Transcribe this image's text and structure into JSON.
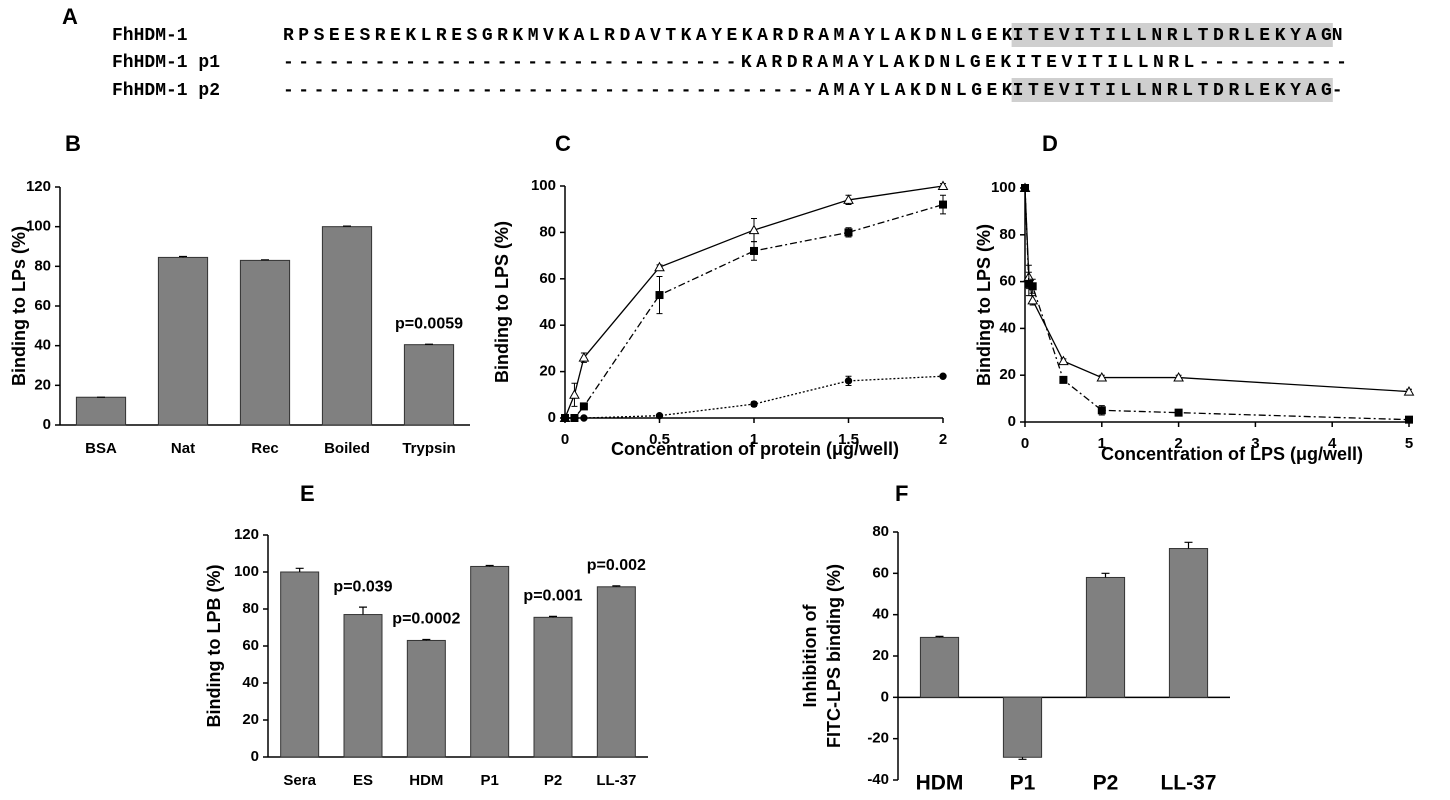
{
  "alignment": {
    "label": "A",
    "rows": [
      {
        "name": "FhHDM-1",
        "segments": [
          {
            "text": "RPSEESREKLRESGRKMVKALRDAVTKAYEKARDRAMAYLAKDNLGEK",
            "highlight": false
          },
          {
            "text": "ITEVITILLNRLTDRLEKYAG",
            "highlight": true
          },
          {
            "text": "N",
            "highlight": false
          }
        ]
      },
      {
        "name": "FhHDM-1 p1",
        "segments": [
          {
            "text": "------------------------------KARDRAMAYLAKDNLGEKITEVITILLNRL----------",
            "highlight": false
          }
        ]
      },
      {
        "name": "FhHDM-1 p2",
        "segments": [
          {
            "text": "-----------------------------------AMAYLAKDNLGEK",
            "highlight": false
          },
          {
            "text": "ITEVITILLNRLTDRLEKYAG",
            "highlight": true
          },
          {
            "text": "-",
            "highlight": false
          }
        ]
      }
    ]
  },
  "chart_data": [
    {
      "type": "bar",
      "label": "B",
      "ylabel": [
        "Binding to LPs (%)"
      ],
      "categories": [
        "BSA",
        "Nat",
        "Rec",
        "Boiled",
        "Trypsin"
      ],
      "values": [
        14,
        84.5,
        83,
        100,
        40.5
      ],
      "errors": [
        0,
        0.5,
        0.3,
        0.3,
        0.2
      ],
      "annotations": [
        null,
        null,
        null,
        null,
        "p=0.0059"
      ],
      "color": "#808080",
      "ylim": [
        0,
        120
      ],
      "yticks": [
        0,
        20,
        40,
        60,
        80,
        100,
        120
      ]
    },
    {
      "type": "line",
      "label": "C",
      "ylabel": [
        "Binding to LPS (%)"
      ],
      "xlabel": "Concentration of protein (μg/well)",
      "x": [
        0,
        0.05,
        0.1,
        0.5,
        1,
        1.5,
        2
      ],
      "series": [
        {
          "marker": "triangle",
          "dash": "solid",
          "color": "#000000",
          "values": [
            0,
            10,
            26,
            65,
            81,
            94,
            100
          ],
          "errors": [
            0,
            5,
            2,
            1,
            5,
            2,
            1
          ]
        },
        {
          "marker": "square",
          "dash": "dashdot",
          "color": "#000000",
          "values": [
            0,
            0,
            5,
            53,
            72,
            80,
            92
          ],
          "errors": [
            0,
            0,
            0,
            8,
            4,
            2,
            4
          ]
        },
        {
          "marker": "circle",
          "dash": "dotted",
          "color": "#000000",
          "values": [
            0,
            0,
            0,
            1,
            6,
            16,
            18
          ],
          "errors": [
            0,
            0,
            0,
            0,
            1,
            2,
            0
          ]
        }
      ],
      "xlim": [
        0,
        2
      ],
      "xticks": [
        0,
        0.5,
        1,
        1.5,
        2
      ],
      "ylim": [
        0,
        100
      ],
      "yticks": [
        0,
        20,
        40,
        60,
        80,
        100
      ]
    },
    {
      "type": "line",
      "label": "D",
      "ylabel": [
        "Binding to LPS (%)"
      ],
      "xlabel": "Concentration of LPS (μg/well)",
      "x": [
        0,
        0.05,
        0.1,
        0.5,
        1,
        2,
        5
      ],
      "series": [
        {
          "marker": "triangle",
          "dash": "solid",
          "color": "#000000",
          "values": [
            100,
            62,
            52,
            26,
            19,
            19,
            13
          ],
          "errors": [
            0,
            5,
            2,
            1,
            1,
            1,
            1
          ]
        },
        {
          "marker": "square",
          "dash": "dashdot",
          "color": "#000000",
          "values": [
            100,
            59,
            58,
            18,
            5,
            4,
            1
          ],
          "errors": [
            0,
            5,
            3,
            1,
            2,
            1,
            1
          ]
        }
      ],
      "xlim": [
        0,
        5
      ],
      "xticks": [
        0,
        1,
        2,
        3,
        4,
        5
      ],
      "ylim": [
        0,
        100
      ],
      "yticks": [
        0,
        20,
        40,
        60,
        80,
        100
      ]
    },
    {
      "type": "bar",
      "label": "E",
      "ylabel": [
        "Binding to LPB (%)"
      ],
      "categories": [
        "Sera",
        "ES",
        "HDM",
        "P1",
        "P2",
        "LL-37"
      ],
      "values": [
        100,
        77,
        63,
        103,
        75.5,
        92
      ],
      "errors": [
        2,
        4,
        0.5,
        0.5,
        0.5,
        0.5
      ],
      "annotations": [
        null,
        "p=0.039",
        "p=0.0002",
        null,
        "p=0.001",
        "p=0.002"
      ],
      "color": "#808080",
      "ylim": [
        0,
        120
      ],
      "yticks": [
        0,
        20,
        40,
        60,
        80,
        100,
        120
      ]
    },
    {
      "type": "bar",
      "label": "F",
      "ylabel": [
        "Inhibition of",
        "FITC-LPS binding (%)"
      ],
      "categories": [
        "HDM",
        "P1",
        "P2",
        "LL-37"
      ],
      "values": [
        29,
        -29,
        58,
        72
      ],
      "errors": [
        0.5,
        1,
        2,
        3
      ],
      "color": "#808080",
      "ylim": [
        -40,
        80
      ],
      "yticks": [
        -40,
        -20,
        0,
        20,
        40,
        60,
        80
      ]
    }
  ]
}
